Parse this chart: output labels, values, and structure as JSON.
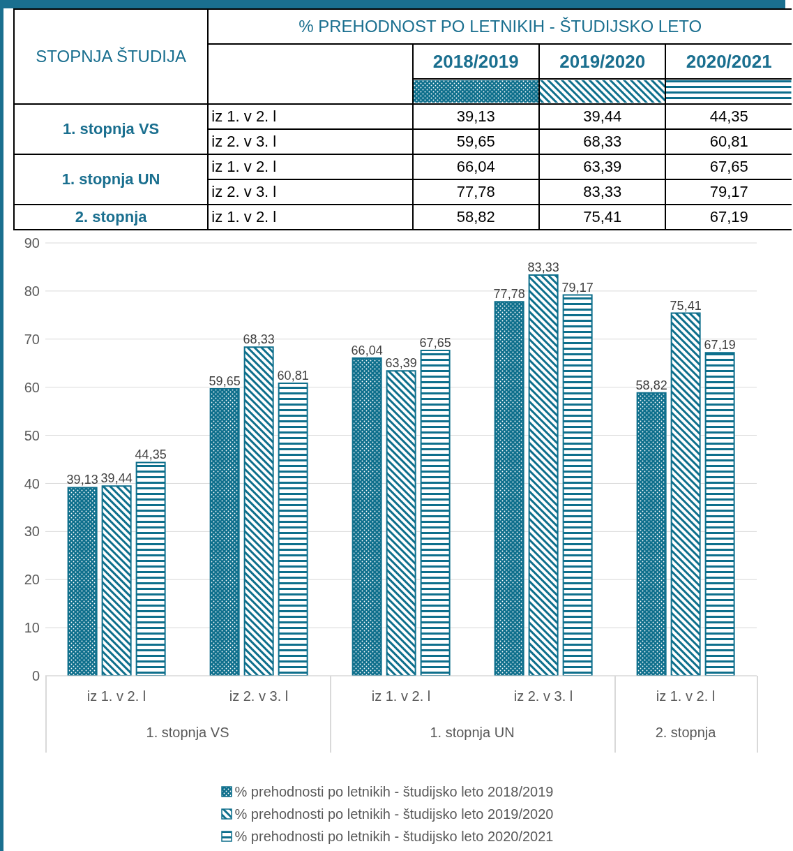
{
  "chart_data": {
    "type": "bar",
    "title": "% PREHODNOST PO LETNIKIH - ŠTUDIJSKO LETO",
    "categories": [
      "iz 1. v 2. l",
      "iz 2. v 3. l",
      "iz 1. v 2. l",
      "iz 2. v 3. l",
      "iz 1. v 2. l"
    ],
    "series": [
      {
        "name": "% prehodnosti po letnikih - študijsko leto 2018/2019",
        "color": "#0e6f8c",
        "values": [
          39.13,
          59.65,
          66.04,
          77.78,
          58.82
        ],
        "value_labels": [
          "39,13",
          "59,65",
          "66,04",
          "77,78",
          "58,82"
        ]
      },
      {
        "name": "% prehodnosti po letnikih - študijsko leto 2019/2020",
        "color": "#0e6f8c",
        "values": [
          39.44,
          68.33,
          63.39,
          83.33,
          75.41
        ],
        "value_labels": [
          "39,44",
          "68,33",
          "63,39",
          "83,33",
          "75,41"
        ]
      },
      {
        "name": "% prehodnosti po letnikih - študijsko leto 2020/2021",
        "color": "#0e6f8c",
        "values": [
          44.35,
          60.81,
          67.65,
          79.17,
          67.19
        ],
        "value_labels": [
          "44,35",
          "60,81",
          "67,65",
          "79,17",
          "67,19"
        ]
      }
    ],
    "ylim": [
      0,
      90
    ],
    "yticks": [
      0,
      10,
      20,
      30,
      40,
      50,
      60,
      70,
      80,
      90
    ],
    "grid": "y",
    "legend": "bottom",
    "annotations": [
      "STOPNJA ŠTUDIJA",
      "2018/2019",
      "2019/2020",
      "2020/2021",
      "1. stopnja VS",
      "1. stopnja UN",
      "2. stopnja"
    ]
  }
}
